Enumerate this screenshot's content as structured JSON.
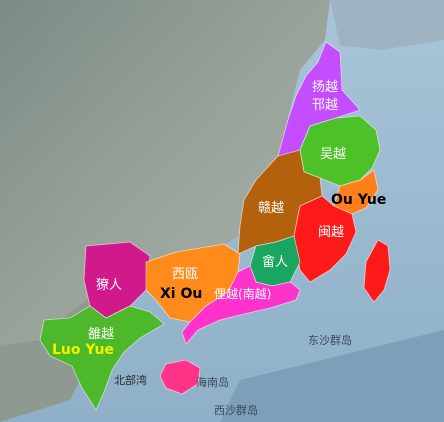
{
  "regions": [
    {
      "id": "yang-yue",
      "name": "扬越",
      "alt_name": "邗越",
      "color": "#c34dff"
    },
    {
      "id": "wu-yue",
      "name": "吴越",
      "color": "#4cc228"
    },
    {
      "id": "ou-yue",
      "name": "Ou Yue",
      "color": "#ff7f1a"
    },
    {
      "id": "gan-yue",
      "name": "赣越",
      "color": "#b3610d"
    },
    {
      "id": "min-yue",
      "name": "闽越",
      "color": "#ff1a1a"
    },
    {
      "id": "liao-ren",
      "name": "獠人",
      "color": "#d1198c"
    },
    {
      "id": "xi-ou",
      "name": "西瓯",
      "color": "#ff8c1a"
    },
    {
      "id": "she-ren",
      "name": "畲人",
      "color": "#1aa660"
    },
    {
      "id": "li-yue",
      "name": "俚越(南越)",
      "color": "#ff33cc"
    },
    {
      "id": "luo-yue",
      "name": "雒越",
      "color": "#4cb82a"
    },
    {
      "id": "hainan",
      "name": "",
      "color": "#ff3388"
    },
    {
      "id": "taiwan",
      "name": "",
      "color": "#ff1a1a"
    }
  ],
  "english_labels": {
    "ou_yue": "Ou Yue",
    "xi_ou": "Xi Ou",
    "luo_yue": "Luo Yue"
  },
  "background_labels": {
    "dongsha": "东沙群岛",
    "hainan_island": "海南岛",
    "xisha": "西沙群岛",
    "beibu_bay": "北部湾"
  }
}
